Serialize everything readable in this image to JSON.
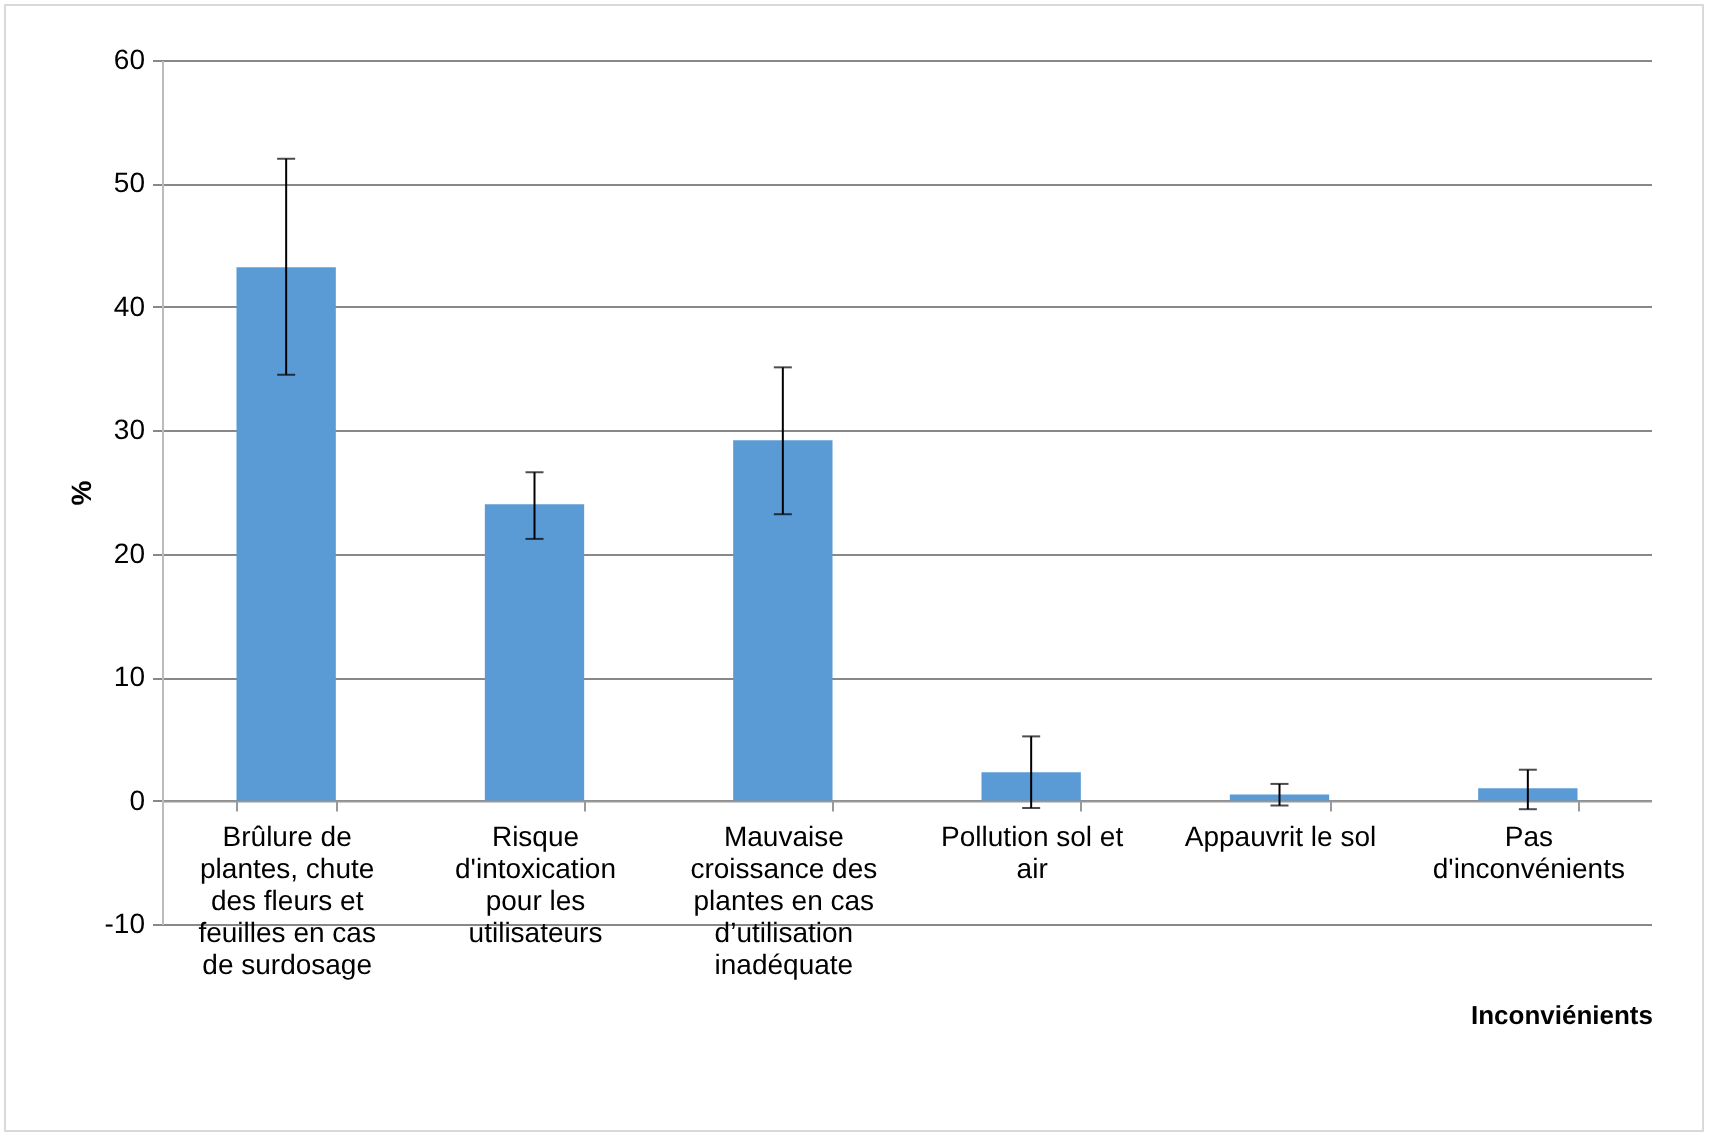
{
  "chart_data": {
    "type": "bar",
    "xlabel": "Inconviénients",
    "ylabel": "%",
    "categories": [
      "Brûlure de plantes, chute des fleurs et feuilles en cas de surdosage",
      "Risque d'intoxication pour les utilisateurs",
      "Mauvaise croissance des plantes en cas d’utilisation inadéquate",
      "Pollution sol et air",
      "Appauvrit le sol",
      "Pas d'inconvénients"
    ],
    "values": [
      43.2,
      24,
      29.2,
      2.3,
      0.5,
      1.0
    ],
    "errors": [
      [
        34.5,
        52
      ],
      [
        21.2,
        26.6
      ],
      [
        23.2,
        35.1
      ],
      [
        -0.6,
        5.2
      ],
      [
        -0.4,
        1.35
      ],
      [
        -0.7,
        2.5
      ]
    ],
    "color": "#5b9bd5",
    "ylim": [
      -10,
      60
    ],
    "yticks": [
      -10,
      0,
      10,
      20,
      30,
      40,
      50,
      60
    ],
    "grid": "y"
  }
}
